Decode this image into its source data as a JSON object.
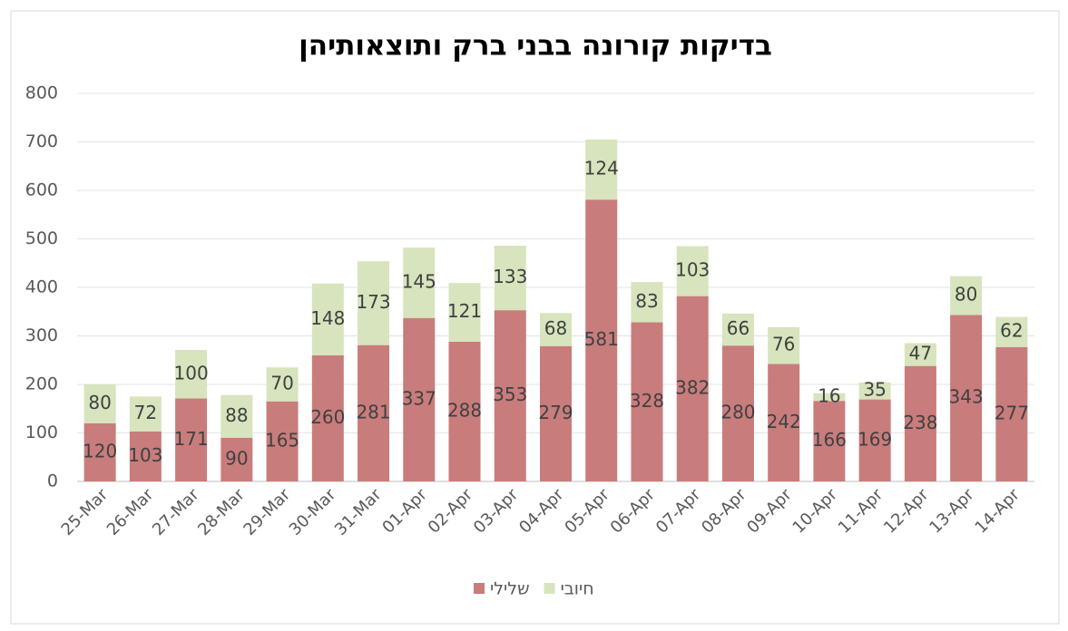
{
  "chart_data": {
    "type": "stacked_bar",
    "title": "בדיקות קורונה בבני ברק ותוצאותיהן",
    "categories": [
      "25-Mar",
      "26-Mar",
      "27-Mar",
      "28-Mar",
      "29-Mar",
      "30-Mar",
      "31-Mar",
      "01-Apr",
      "02-Apr",
      "03-Apr",
      "04-Apr",
      "05-Apr",
      "06-Apr",
      "07-Apr",
      "08-Apr",
      "09-Apr",
      "10-Apr",
      "11-Apr",
      "12-Apr",
      "13-Apr",
      "14-Apr"
    ],
    "series": [
      {
        "name": "שלילי",
        "color": "#c97c7c",
        "values": [
          120,
          103,
          171,
          90,
          165,
          260,
          281,
          337,
          288,
          353,
          279,
          581,
          328,
          382,
          280,
          242,
          166,
          169,
          238,
          343,
          277
        ]
      },
      {
        "name": "חיובי",
        "color": "#d7e4bd",
        "values": [
          80,
          72,
          100,
          88,
          70,
          148,
          173,
          145,
          121,
          133,
          68,
          124,
          83,
          103,
          66,
          76,
          16,
          35,
          47,
          80,
          62
        ]
      }
    ],
    "ylim": [
      0,
      800
    ],
    "yticks": [
      0,
      100,
      200,
      300,
      400,
      500,
      600,
      700,
      800
    ],
    "grid": true,
    "legend": "bottom"
  }
}
